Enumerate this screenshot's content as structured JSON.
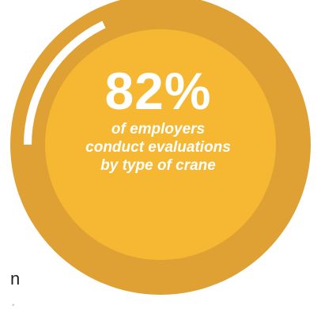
{
  "chart_data": {
    "type": "pie",
    "variant": "donut",
    "title": "",
    "percent_value": 82,
    "big_label": "82%",
    "caption_lines": [
      "of employers",
      "conduct evaluations",
      "by type of crane"
    ],
    "colors": {
      "ring_filled": "#e0a134",
      "ring_empty": "#ffffff",
      "inner_disk": "#f6b733",
      "text": "#ffffff"
    }
  },
  "background_text": {
    "fragment": "n",
    "fragment_faded": "·"
  }
}
